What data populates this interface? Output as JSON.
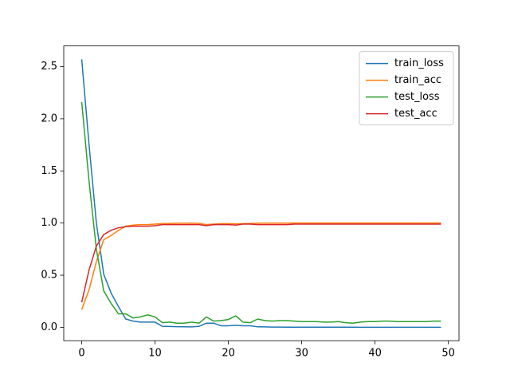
{
  "chart_data": {
    "type": "line",
    "x": [
      0,
      1,
      2,
      3,
      4,
      5,
      6,
      7,
      8,
      9,
      10,
      11,
      12,
      13,
      14,
      15,
      16,
      17,
      18,
      19,
      20,
      21,
      22,
      23,
      24,
      25,
      26,
      27,
      28,
      29,
      30,
      31,
      32,
      33,
      34,
      35,
      36,
      37,
      38,
      39,
      40,
      41,
      42,
      43,
      44,
      45,
      46,
      47,
      48,
      49
    ],
    "series": [
      {
        "name": "train_loss",
        "color": "#1f77b4",
        "values": [
          2.57,
          1.75,
          1.0,
          0.51,
          0.33,
          0.2,
          0.08,
          0.06,
          0.05,
          0.05,
          0.05,
          0.01,
          0.008,
          0.006,
          0.005,
          0.004,
          0.01,
          0.04,
          0.04,
          0.015,
          0.015,
          0.02,
          0.015,
          0.015,
          0.005,
          0.004,
          0.003,
          0.003,
          0.002,
          0.002,
          0.002,
          0.002,
          0.002,
          0.002,
          0.002,
          0.002,
          0.002,
          0.002,
          0.001,
          0.001,
          0.001,
          0.001,
          0.001,
          0.001,
          0.001,
          0.001,
          0.001,
          0.001,
          0.001,
          0.001
        ]
      },
      {
        "name": "train_acc",
        "color": "#ff7f0e",
        "values": [
          0.17,
          0.36,
          0.63,
          0.84,
          0.88,
          0.93,
          0.97,
          0.98,
          0.985,
          0.985,
          0.99,
          0.995,
          0.997,
          0.998,
          0.998,
          0.999,
          0.997,
          0.985,
          0.99,
          0.995,
          0.995,
          0.993,
          0.995,
          0.996,
          0.998,
          0.999,
          0.999,
          0.999,
          0.999,
          1.0,
          1.0,
          1.0,
          1.0,
          1.0,
          1.0,
          1.0,
          1.0,
          1.0,
          1.0,
          1.0,
          1.0,
          1.0,
          1.0,
          1.0,
          1.0,
          1.0,
          1.0,
          1.0,
          1.0,
          1.0
        ]
      },
      {
        "name": "test_loss",
        "color": "#2ca02c",
        "values": [
          2.16,
          1.4,
          0.75,
          0.35,
          0.23,
          0.13,
          0.13,
          0.09,
          0.1,
          0.12,
          0.1,
          0.045,
          0.05,
          0.04,
          0.04,
          0.05,
          0.04,
          0.1,
          0.06,
          0.065,
          0.075,
          0.11,
          0.05,
          0.045,
          0.08,
          0.065,
          0.06,
          0.065,
          0.065,
          0.06,
          0.055,
          0.055,
          0.055,
          0.05,
          0.05,
          0.055,
          0.045,
          0.04,
          0.05,
          0.055,
          0.055,
          0.06,
          0.06,
          0.055,
          0.055,
          0.055,
          0.055,
          0.055,
          0.06,
          0.06
        ]
      },
      {
        "name": "test_acc",
        "color": "#d62728",
        "values": [
          0.24,
          0.55,
          0.78,
          0.89,
          0.93,
          0.955,
          0.965,
          0.97,
          0.97,
          0.97,
          0.975,
          0.985,
          0.985,
          0.985,
          0.985,
          0.985,
          0.985,
          0.975,
          0.985,
          0.985,
          0.985,
          0.98,
          0.99,
          0.99,
          0.985,
          0.985,
          0.985,
          0.985,
          0.985,
          0.99,
          0.99,
          0.99,
          0.99,
          0.99,
          0.99,
          0.99,
          0.99,
          0.99,
          0.99,
          0.99,
          0.99,
          0.99,
          0.99,
          0.99,
          0.99,
          0.99,
          0.99,
          0.99,
          0.99,
          0.99
        ]
      }
    ],
    "xlim": [
      -2.45,
      51.45
    ],
    "xticks": [
      0,
      10,
      20,
      30,
      40,
      50
    ],
    "ylim": [
      -0.128,
      2.698
    ],
    "yticks": [
      {
        "value": 0,
        "label": "0.0"
      },
      0.5,
      {
        "value": 1,
        "label": "1.0"
      },
      1.5,
      {
        "value": 2,
        "label": "2.0"
      },
      2.5
    ],
    "legend": "upper right",
    "grid": false
  }
}
